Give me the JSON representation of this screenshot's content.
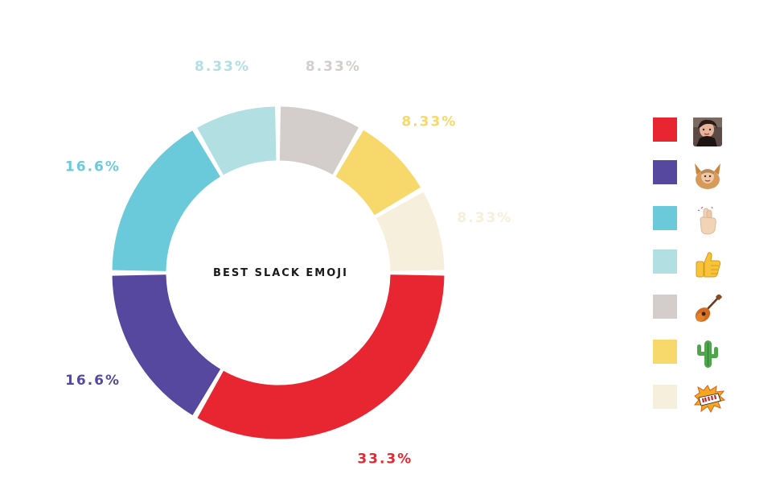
{
  "chart_data": {
    "type": "pie",
    "title": "BEST SLACK EMOJI",
    "categories": [
      "person-photo",
      "dog-photo",
      "fingers-crossed",
      "thumbs-up",
      "guitar",
      "cactus",
      "boom"
    ],
    "values": [
      33.3,
      16.6,
      16.6,
      8.33,
      8.33,
      8.33,
      8.33
    ],
    "value_labels": [
      "33.3%",
      "16.6%",
      "16.6%",
      "8.33%",
      "8.33%",
      "8.33%",
      "8.33%"
    ],
    "colors": [
      "#e82632",
      "#56479f",
      "#6bcad9",
      "#b2dfe2",
      "#d3cdcc",
      "#f7d86a",
      "#f5efdb"
    ],
    "legend_placement": "right",
    "hole": "donut"
  },
  "legend": {
    "items": [
      {
        "icon": "person-photo-icon",
        "color": "#e82632"
      },
      {
        "icon": "dog-photo-icon",
        "color": "#56479f"
      },
      {
        "icon": "fingers-crossed-icon",
        "color": "#6bcad9"
      },
      {
        "icon": "thumbs-up-icon",
        "color": "#b2dfe2"
      },
      {
        "icon": "guitar-icon",
        "color": "#d3cdcc"
      },
      {
        "icon": "cactus-icon",
        "color": "#f7d86a"
      },
      {
        "icon": "boom-icon",
        "color": "#f5efdb"
      }
    ]
  }
}
